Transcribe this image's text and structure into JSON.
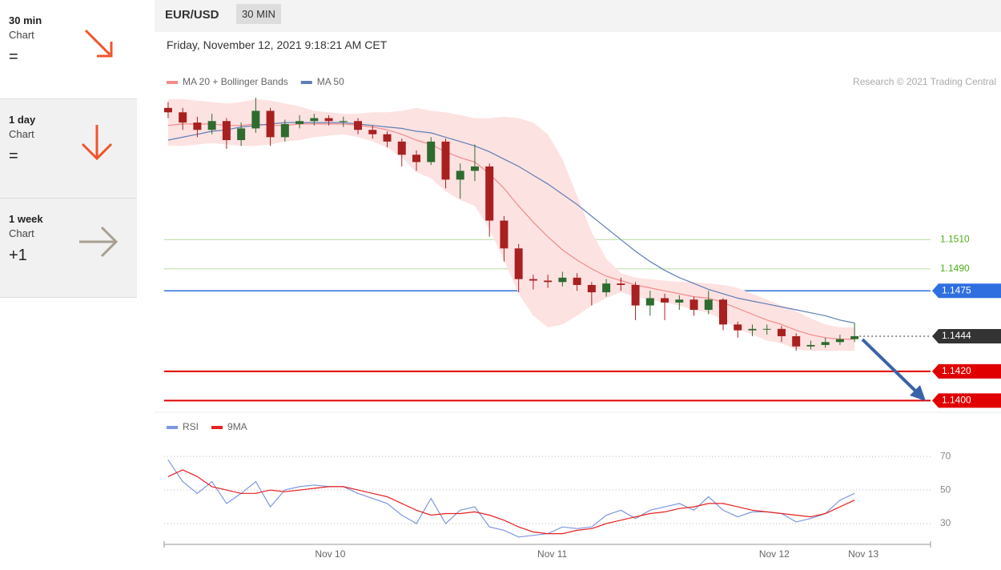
{
  "sidebar": [
    {
      "period": "30 min",
      "label": "Chart",
      "signal": "="
    },
    {
      "period": "1 day",
      "label": "Chart",
      "signal": "="
    },
    {
      "period": "1 week",
      "label": "Chart",
      "signal": "+1"
    }
  ],
  "header": {
    "symbol": "EUR/USD",
    "interval": "30 MIN",
    "timestamp": "Friday, November 12, 2021 9:18:21 AM CET"
  },
  "chart_data": [
    {
      "type": "candlestick",
      "credit": "Research © 2021 Trading Central",
      "xlim": [
        -0.27,
        52.2
      ],
      "ylim": [
        1.1392,
        1.1607
      ],
      "up_color": "#2e6b2e",
      "down_color": "#a82020",
      "open": [
        1.16,
        1.1597,
        1.159,
        1.1585,
        1.1591,
        1.1578,
        1.1586,
        1.1598,
        1.158,
        1.1589,
        1.1591,
        1.1593,
        1.1591,
        1.1591,
        1.1585,
        1.1582,
        1.1577,
        1.1568,
        1.1563,
        1.1577,
        1.1551,
        1.1557,
        1.156,
        1.1523,
        1.1504,
        1.1483,
        1.1482,
        1.1481,
        1.1484,
        1.1479,
        1.1474,
        1.148,
        1.1479,
        1.1465,
        1.147,
        1.1467,
        1.1469,
        1.1462,
        1.1469,
        1.1452,
        1.1448,
        1.1449,
        1.1449,
        1.1444,
        1.1437,
        1.1438,
        1.144,
        1.1442
      ],
      "high": [
        1.1604,
        1.16,
        1.1594,
        1.1596,
        1.1593,
        1.159,
        1.1607,
        1.16,
        1.1592,
        1.1595,
        1.1596,
        1.1595,
        1.1594,
        1.1593,
        1.1588,
        1.1584,
        1.1579,
        1.1571,
        1.158,
        1.1579,
        1.1562,
        1.1575,
        1.1562,
        1.1526,
        1.1507,
        1.1486,
        1.1486,
        1.1488,
        1.1487,
        1.1481,
        1.1483,
        1.1484,
        1.1481,
        1.1475,
        1.1473,
        1.1472,
        1.1471,
        1.1475,
        1.147,
        1.1454,
        1.1452,
        1.1452,
        1.1451,
        1.1446,
        1.1441,
        1.1443,
        1.1445,
        1.1453
      ],
      "low": [
        1.1593,
        1.1585,
        1.158,
        1.1582,
        1.1572,
        1.1574,
        1.1583,
        1.1574,
        1.1577,
        1.1586,
        1.1588,
        1.1588,
        1.1587,
        1.1582,
        1.1579,
        1.1573,
        1.156,
        1.1557,
        1.1561,
        1.1545,
        1.1538,
        1.155,
        1.1512,
        1.1495,
        1.1474,
        1.1476,
        1.1477,
        1.1478,
        1.1475,
        1.1465,
        1.1471,
        1.1475,
        1.1455,
        1.1458,
        1.1455,
        1.1462,
        1.1458,
        1.1459,
        1.1448,
        1.1443,
        1.1444,
        1.1445,
        1.144,
        1.1434,
        1.1435,
        1.1436,
        1.1438,
        1.144
      ],
      "close": [
        1.1597,
        1.159,
        1.1585,
        1.1591,
        1.1578,
        1.1586,
        1.1598,
        1.158,
        1.1589,
        1.1591,
        1.1593,
        1.1591,
        1.1591,
        1.1585,
        1.1582,
        1.1577,
        1.1568,
        1.1563,
        1.1577,
        1.1551,
        1.1557,
        1.156,
        1.1523,
        1.1504,
        1.1483,
        1.1482,
        1.1481,
        1.1484,
        1.1479,
        1.1474,
        1.148,
        1.1479,
        1.1465,
        1.147,
        1.1467,
        1.1469,
        1.1462,
        1.1469,
        1.1452,
        1.1448,
        1.1449,
        1.1449,
        1.1444,
        1.1437,
        1.1438,
        1.144,
        1.1442,
        1.1444
      ],
      "series": [
        {
          "name": "MA 20 + Bollinger Bands",
          "color": "#f28b8b",
          "band_color": "#fde2e2",
          "values": [
            1.1588,
            1.1589,
            1.1589,
            1.1589,
            1.1588,
            1.1588,
            1.1589,
            1.1588,
            1.1588,
            1.1589,
            1.1589,
            1.1589,
            1.1589,
            1.1588,
            1.1587,
            1.1585,
            1.1582,
            1.1578,
            1.1575,
            1.157,
            1.1566,
            1.1563,
            1.1555,
            1.1545,
            1.1533,
            1.1522,
            1.1512,
            1.1503,
            1.1496,
            1.149,
            1.1485,
            1.1482,
            1.1479,
            1.1477,
            1.1475,
            1.1473,
            1.1471,
            1.147,
            1.1467,
            1.1463,
            1.1459,
            1.1455,
            1.1452,
            1.1448,
            1.1445,
            1.1443,
            1.1442,
            1.1442
          ],
          "upper": [
            1.1606,
            1.1606,
            1.1605,
            1.1604,
            1.1603,
            1.1604,
            1.1606,
            1.1605,
            1.1603,
            1.1601,
            1.1598,
            1.1597,
            1.1596,
            1.1596,
            1.1597,
            1.1597,
            1.1598,
            1.16,
            1.1598,
            1.1597,
            1.1595,
            1.1593,
            1.1593,
            1.1594,
            1.1593,
            1.159,
            1.1582,
            1.1565,
            1.154,
            1.1515,
            1.1497,
            1.1487,
            1.1484,
            1.1483,
            1.1482,
            1.1481,
            1.1481,
            1.148,
            1.1479,
            1.1477,
            1.1473,
            1.1469,
            1.1465,
            1.1461,
            1.1456,
            1.1452,
            1.145,
            1.145
          ],
          "lower": [
            1.1574,
            1.1574,
            1.1575,
            1.1576,
            1.1575,
            1.1574,
            1.1574,
            1.1575,
            1.1577,
            1.1578,
            1.158,
            1.1581,
            1.1582,
            1.158,
            1.1577,
            1.1573,
            1.1566,
            1.1556,
            1.1552,
            1.1543,
            1.1537,
            1.1533,
            1.1517,
            1.1496,
            1.1473,
            1.1458,
            1.145,
            1.1452,
            1.1458,
            1.1465,
            1.147,
            1.1474,
            1.1471,
            1.1469,
            1.1467,
            1.1465,
            1.1462,
            1.146,
            1.1455,
            1.1449,
            1.1445,
            1.1441,
            1.1439,
            1.1435,
            1.1434,
            1.1434,
            1.1434,
            1.1434
          ]
        },
        {
          "name": "MA 50",
          "color": "#5f7fb5",
          "values": [
            1.1578,
            1.158,
            1.1582,
            1.1584,
            1.1585,
            1.1587,
            1.1588,
            1.1589,
            1.159,
            1.159,
            1.159,
            1.159,
            1.159,
            1.1589,
            1.1588,
            1.1587,
            1.1586,
            1.1584,
            1.1583,
            1.158,
            1.1577,
            1.1574,
            1.157,
            1.1565,
            1.156,
            1.1554,
            1.1548,
            1.1541,
            1.1534,
            1.1526,
            1.1518,
            1.151,
            1.1502,
            1.1495,
            1.1489,
            1.1484,
            1.148,
            1.1476,
            1.1473,
            1.147,
            1.1468,
            1.1466,
            1.1464,
            1.1462,
            1.146,
            1.1458,
            1.1455,
            1.1453
          ]
        }
      ],
      "levels": {
        "values": [
          1.151,
          1.149,
          1.1475,
          1.1444,
          1.142,
          1.14
        ],
        "value_labels": [
          "1.1510",
          "1.1490",
          "1.1475",
          "1.1444",
          "1.1420",
          "1.1400"
        ],
        "colors": [
          "#b6dca0",
          "#b6dca0",
          "#2f6fe0",
          "#333333",
          "#e00000",
          "#e00000"
        ],
        "label_colors": [
          "#4caf1a",
          "#4caf1a",
          "#2f6fe0",
          "#333333",
          "#e00000",
          "#e00000"
        ],
        "line_styles": [
          "solid",
          "solid",
          "solid",
          "dotted",
          "solid",
          "solid"
        ],
        "line_widths": [
          1,
          1,
          1.5,
          1,
          2,
          2
        ],
        "label_styles": [
          "text",
          "text",
          "tag",
          "tag",
          "tag",
          "tag"
        ]
      }
    },
    {
      "type": "line",
      "xlim": [
        -0.27,
        52.2
      ],
      "ylim": [
        20,
        82
      ],
      "yticks": [
        30,
        50,
        70
      ],
      "grid": true,
      "xticks": [
        {
          "value": 11.1,
          "label": "Nov 10"
        },
        {
          "value": 26.3,
          "label": "Nov 11"
        },
        {
          "value": 41.5,
          "label": "Nov 12"
        },
        {
          "value": 47.6,
          "label": "Nov 13"
        }
      ],
      "series": [
        {
          "name": "RSI",
          "color": "#7d97e0",
          "values": [
            68,
            55,
            48,
            55,
            42,
            48,
            55,
            40,
            50,
            52,
            53,
            52,
            52,
            48,
            45,
            42,
            35,
            30,
            45,
            30,
            38,
            40,
            28,
            26,
            22,
            23,
            24,
            28,
            27,
            28,
            35,
            38,
            33,
            38,
            40,
            42,
            38,
            46,
            38,
            34,
            37,
            37,
            36,
            31,
            33,
            36,
            44,
            48
          ]
        },
        {
          "name": "9MA",
          "color": "#e82020",
          "values": [
            58,
            62,
            58,
            52,
            50,
            48,
            48,
            50,
            49,
            50,
            51,
            52,
            52,
            50,
            48,
            46,
            42,
            38,
            35,
            36,
            36,
            37,
            35,
            32,
            28,
            25,
            24,
            24,
            26,
            27,
            30,
            32,
            34,
            36,
            37,
            39,
            40,
            42,
            42,
            40,
            38,
            37,
            36,
            35,
            34,
            36,
            40,
            44
          ]
        }
      ]
    }
  ]
}
